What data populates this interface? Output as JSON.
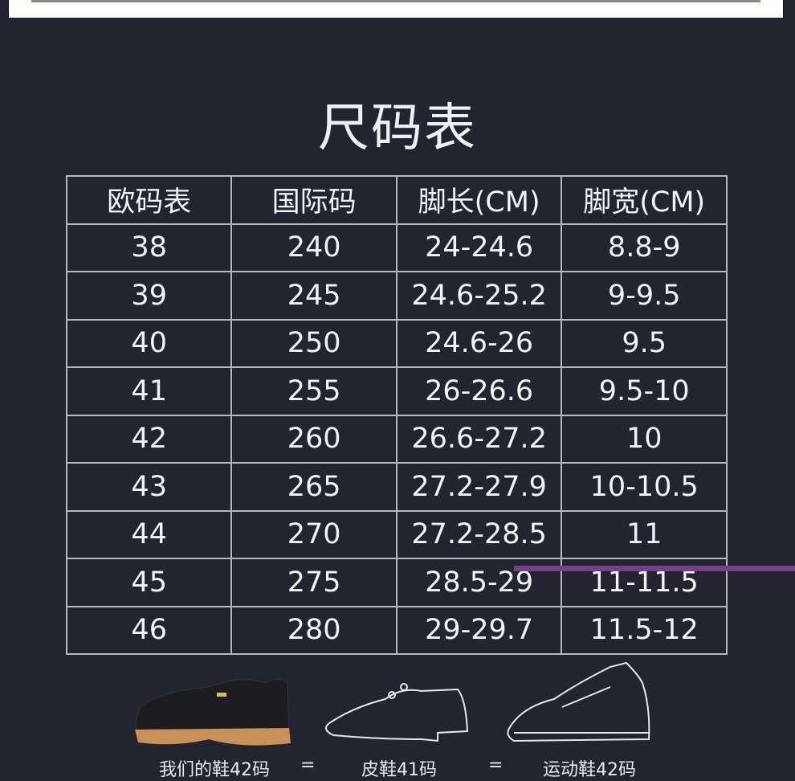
{
  "title": "尺码表",
  "table": {
    "headers": [
      "欧码表",
      "国际码",
      "脚长(CM)",
      "脚宽(CM)"
    ],
    "rows": [
      [
        "38",
        "240",
        "24-24.6",
        "8.8-9"
      ],
      [
        "39",
        "245",
        "24.6-25.2",
        "9-9.5"
      ],
      [
        "40",
        "250",
        "24.6-26",
        "9.5"
      ],
      [
        "41",
        "255",
        "26-26.6",
        "9.5-10"
      ],
      [
        "42",
        "260",
        "26.6-27.2",
        "10"
      ],
      [
        "43",
        "265",
        "27.2-27.9",
        "10-10.5"
      ],
      [
        "44",
        "270",
        "27.2-28.5",
        "11"
      ],
      [
        "45",
        "275",
        "28.5-29",
        "11-11.5"
      ],
      [
        "46",
        "280",
        "29-29.7",
        "11.5-12"
      ]
    ]
  },
  "comparison": {
    "ours": "我们的鞋42码",
    "sep": "=",
    "leather": "皮鞋41码",
    "sneaker": "运动鞋42码"
  },
  "colors": {
    "background": "#22252f",
    "sole": "#c8915a",
    "overlay_line": "#7a3d8a"
  }
}
